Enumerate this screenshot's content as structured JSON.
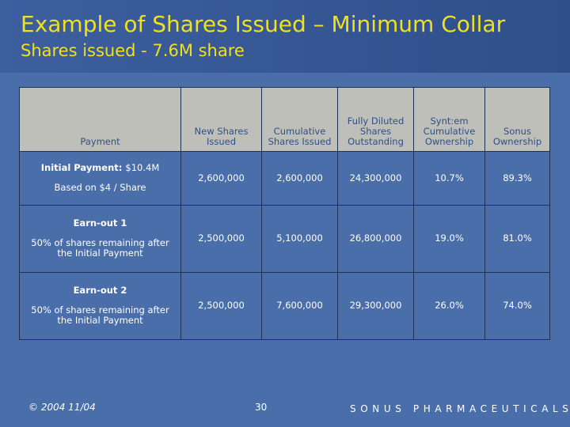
{
  "slide": {
    "title": "Example of Shares Issued – Minimum Collar",
    "subtitle": "Shares issued - 7.6M share"
  },
  "colors": {
    "background": "#4a6ea9",
    "header_band": "#2f4f8a",
    "title": "#f0e020",
    "table_header_bg": "#bfbfb9",
    "table_header_text": "#2f4f86"
  },
  "table": {
    "headers": [
      "Payment",
      "New Shares Issued",
      "Cumulative Shares Issued",
      "Fully Diluted Shares Outstanding",
      "Synt:em Cumulative Ownership",
      "Sonus Ownership"
    ],
    "rows": [
      {
        "payment_title": "Initial Payment:",
        "payment_amount": "$10.4M",
        "payment_sub": "Based on $4 / Share",
        "values": [
          "2,600,000",
          "2,600,000",
          "24,300,000",
          "10.7%",
          "89.3%"
        ]
      },
      {
        "payment_title": "Earn-out 1",
        "payment_amount": "",
        "payment_sub": "50% of shares remaining after the Initial Payment",
        "values": [
          "2,500,000",
          "5,100,000",
          "26,800,000",
          "19.0%",
          "81.0%"
        ]
      },
      {
        "payment_title": "Earn-out 2",
        "payment_amount": "",
        "payment_sub": "50% of shares remaining after the Initial Payment",
        "values": [
          "2,500,000",
          "7,600,000",
          "29,300,000",
          "26.0%",
          "74.0%"
        ]
      }
    ]
  },
  "footer": {
    "copyright": "© 2004  11/04",
    "page_number": "30",
    "brand": "SONUS PHARMACEUTICALS"
  }
}
